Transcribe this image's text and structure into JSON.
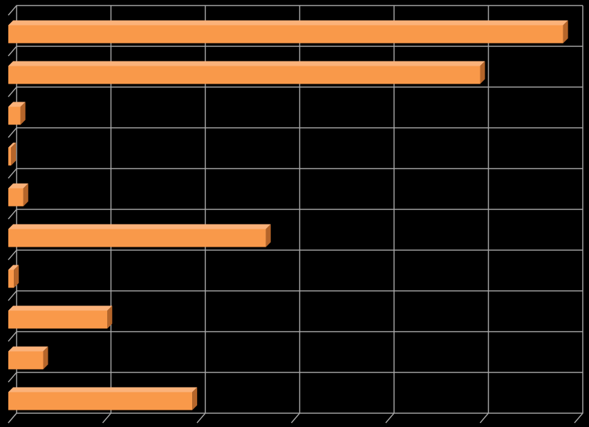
{
  "chart_data": {
    "type": "bar",
    "orientation": "horizontal",
    "categories": [
      null,
      null,
      null,
      null,
      null,
      null,
      null,
      null,
      null,
      null
    ],
    "values": [
      58.8,
      50.0,
      1.3,
      0.3,
      1.6,
      27.3,
      0.6,
      10.5,
      3.7,
      19.5
    ],
    "color": "#f9994a",
    "xlim": [
      0,
      60
    ],
    "xticks": [
      0,
      10,
      20,
      30,
      40,
      50,
      60
    ],
    "grid": true
  }
}
